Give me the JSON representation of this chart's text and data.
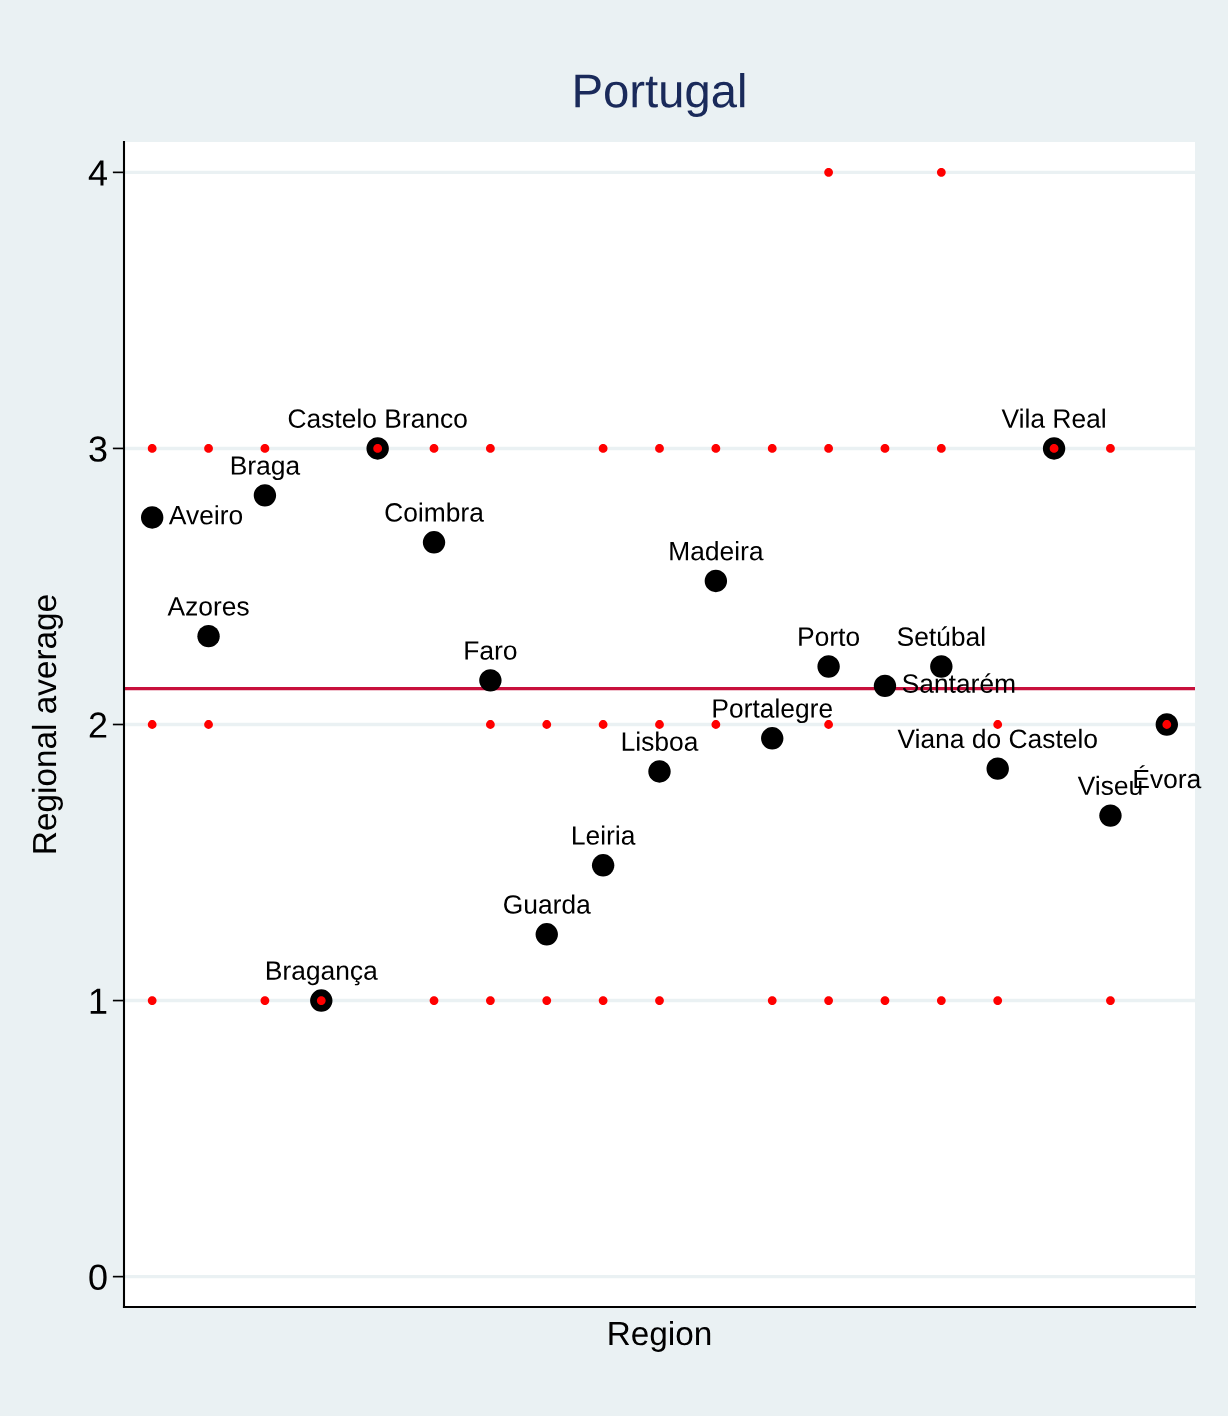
{
  "chart_data": {
    "type": "scatter",
    "title": "Portugal",
    "xlabel": "Region",
    "ylabel": "Regional average",
    "categories": [
      null,
      null,
      null,
      null,
      null,
      null,
      null,
      null,
      null,
      null,
      null,
      null,
      null,
      null,
      null,
      null,
      null,
      null,
      null
    ],
    "ylim": [
      -0.11,
      4.11
    ],
    "yticks": [
      0,
      1,
      2,
      3,
      4
    ],
    "grid": "y",
    "tick_labels": "y",
    "marker": "circle",
    "series": [
      {
        "color": "#000000",
        "values": [
          2.75,
          2.32,
          2.83,
          1.0,
          3.0,
          2.66,
          2.16,
          1.24,
          1.49,
          1.83,
          2.52,
          1.95,
          2.21,
          2.14,
          2.21,
          1.84,
          3.0,
          1.67,
          2.0
        ],
        "value_labels": [
          "Aveiro",
          "Azores",
          "Braga",
          "Bragança",
          "Castelo Branco",
          "Coimbra",
          "Faro",
          "Guarda",
          "Leiria",
          "Lisboa",
          "Madeira",
          "Portalegre",
          "Porto",
          "Santarém",
          "Setúbal",
          "Viana do Castelo",
          "Vila Real",
          "Viseu",
          "Évora"
        ]
      },
      {
        "color": "#ff0000",
        "values": [
          null,
          null,
          null,
          null,
          null,
          null,
          null,
          null,
          null,
          null,
          null,
          null,
          4,
          null,
          4,
          null,
          null,
          null,
          null
        ]
      },
      {
        "color": "#ff0000",
        "values": [
          3,
          3,
          3,
          null,
          3,
          3,
          3,
          null,
          3,
          3,
          3,
          3,
          3,
          3,
          3,
          null,
          3,
          3,
          null
        ]
      },
      {
        "color": "#ff0000",
        "values": [
          2,
          2,
          null,
          null,
          null,
          null,
          2,
          2,
          2,
          2,
          2,
          null,
          2,
          null,
          null,
          2,
          null,
          null,
          2
        ]
      },
      {
        "color": "#ff0000",
        "values": [
          1,
          null,
          1,
          1,
          null,
          1,
          1,
          1,
          1,
          1,
          null,
          1,
          1,
          1,
          1,
          1,
          null,
          1,
          null
        ]
      }
    ],
    "ref_lines": [
      {
        "axis": "y",
        "value": 2.13,
        "color": "#c8103c"
      }
    ]
  }
}
